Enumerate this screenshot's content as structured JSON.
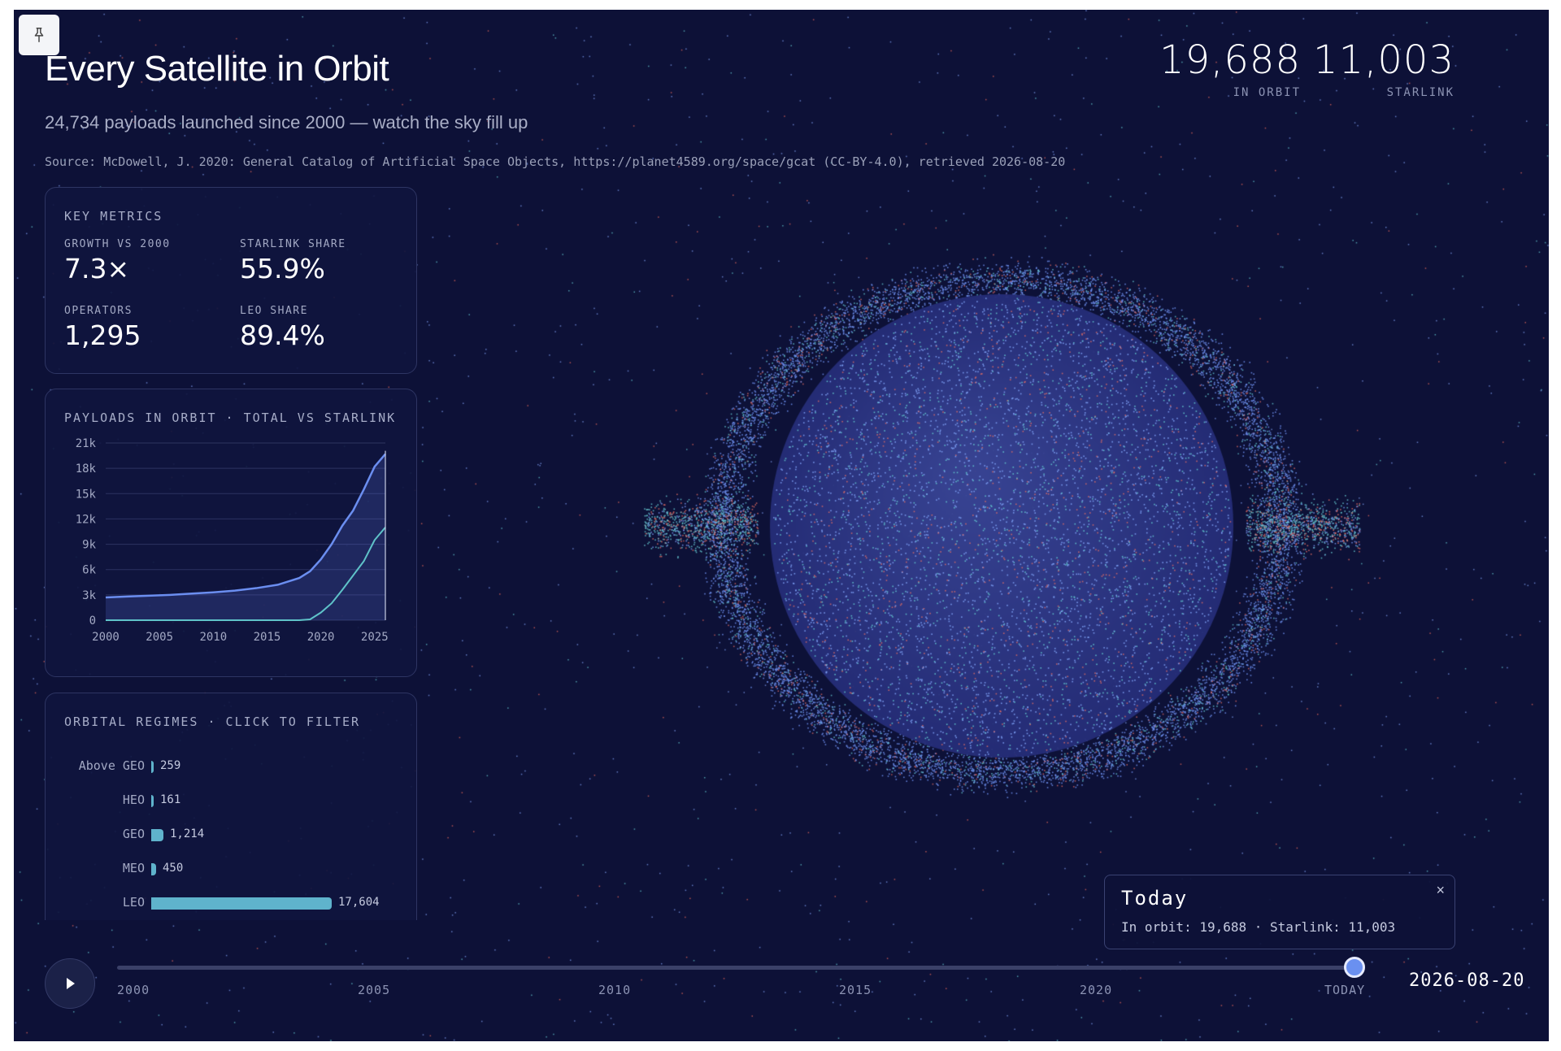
{
  "header": {
    "title": "Every Satellite in Orbit",
    "subtitle": "24,734 payloads launched since 2000 — watch the sky fill up",
    "source": "Source: McDowell, J. 2020: General Catalog of Artificial Space Objects, https://planet4589.org/space/gcat (CC-BY-4.0), retrieved 2026-08-20",
    "pin_icon": "pin-icon"
  },
  "stats": [
    {
      "value": "19,688",
      "label": "IN ORBIT"
    },
    {
      "value": "11,003",
      "label": "STARLINK"
    }
  ],
  "key_metrics": {
    "title": "KEY METRICS",
    "items": [
      {
        "label": "GROWTH VS 2000",
        "value": "7.3×"
      },
      {
        "label": "STARLINK SHARE",
        "value": "55.9%"
      },
      {
        "label": "OPERATORS",
        "value": "1,295"
      },
      {
        "label": "LEO SHARE",
        "value": "89.4%"
      }
    ]
  },
  "chart_panel": {
    "title": "PAYLOADS IN ORBIT · TOTAL VS STARLINK"
  },
  "chart_data": {
    "type": "area",
    "x": [
      2000,
      2002,
      2004,
      2006,
      2008,
      2010,
      2012,
      2014,
      2016,
      2018,
      2019,
      2020,
      2021,
      2022,
      2023,
      2024,
      2025,
      2026
    ],
    "series": [
      {
        "name": "Total",
        "values": [
          2700,
          2800,
          2900,
          3000,
          3150,
          3300,
          3500,
          3800,
          4200,
          5000,
          5800,
          7200,
          9000,
          11200,
          13000,
          15500,
          18200,
          19688
        ],
        "color": "#6b8ef0"
      },
      {
        "name": "Starlink",
        "values": [
          0,
          0,
          0,
          0,
          0,
          0,
          0,
          0,
          0,
          0,
          100,
          900,
          2000,
          3600,
          5300,
          7000,
          9500,
          11003
        ],
        "color": "#5fc3c9"
      }
    ],
    "yticks": [
      "0",
      "3k",
      "6k",
      "9k",
      "12k",
      "15k",
      "18k",
      "21k"
    ],
    "xticks": [
      "2000",
      "2005",
      "2010",
      "2015",
      "2020",
      "2025"
    ],
    "ylim": [
      0,
      21000
    ],
    "xlim": [
      2000,
      2026
    ],
    "grid": true
  },
  "regimes": {
    "title": "ORBITAL REGIMES · CLICK TO FILTER",
    "max": 17604,
    "rows": [
      {
        "label": "Above GEO",
        "value": 259,
        "display": "259"
      },
      {
        "label": "HEO",
        "value": 161,
        "display": "161"
      },
      {
        "label": "GEO",
        "value": 1214,
        "display": "1,214"
      },
      {
        "label": "MEO",
        "value": 450,
        "display": "450"
      },
      {
        "label": "LEO",
        "value": 17604,
        "display": "17,604"
      }
    ]
  },
  "tooltip": {
    "title": "Today",
    "body": "In orbit: 19,688 · Starlink: 11,003",
    "close": "×"
  },
  "timeline": {
    "ticks": [
      "2000",
      "2005",
      "2010",
      "2015",
      "2020",
      "TODAY"
    ],
    "date": "2026-08-20",
    "progress": 1.0,
    "play_icon": "play-icon"
  },
  "colors": {
    "background": "#0d1137",
    "accent": "#6b8ef0",
    "teal": "#5fb3cc",
    "debris": "#e0645a"
  }
}
